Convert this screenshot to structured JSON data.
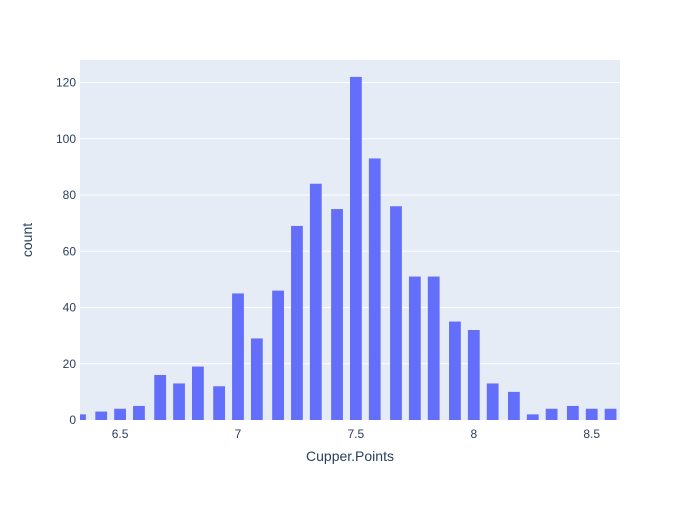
{
  "chart_data": {
    "type": "bar",
    "title": "",
    "xlabel": "Cupper.Points",
    "ylabel": "count",
    "xlim": [
      6.33,
      8.62
    ],
    "ylim": [
      0,
      128
    ],
    "bin_width": 0.05,
    "x_ticks": [
      6.5,
      7,
      7.5,
      8,
      8.5
    ],
    "x_tick_labels": [
      "6.5",
      "7",
      "7.5",
      "8",
      "8.5"
    ],
    "y_ticks": [
      0,
      20,
      40,
      60,
      80,
      100,
      120
    ],
    "y_tick_labels": [
      "0",
      "20",
      "40",
      "60",
      "80",
      "100",
      "120"
    ],
    "grid": true,
    "colors": {
      "bar": "#636efa",
      "plot_bg": "#e5ecf6",
      "grid": "#ffffff",
      "text": "#2a3f5f"
    },
    "series": [
      {
        "x": [
          6.33,
          6.42,
          6.5,
          6.58,
          6.67,
          6.75,
          6.83,
          6.92,
          7.0,
          7.08,
          7.17,
          7.25,
          7.33,
          7.42,
          7.5,
          7.58,
          7.67,
          7.75,
          7.83,
          7.92,
          8.0,
          8.08,
          8.17,
          8.25,
          8.33,
          8.42,
          8.5,
          8.58
        ],
        "values": [
          2,
          3,
          4,
          5,
          16,
          13,
          19,
          12,
          45,
          29,
          46,
          69,
          84,
          75,
          122,
          93,
          76,
          51,
          51,
          35,
          32,
          13,
          10,
          2,
          4,
          5,
          4,
          4
        ]
      }
    ]
  }
}
